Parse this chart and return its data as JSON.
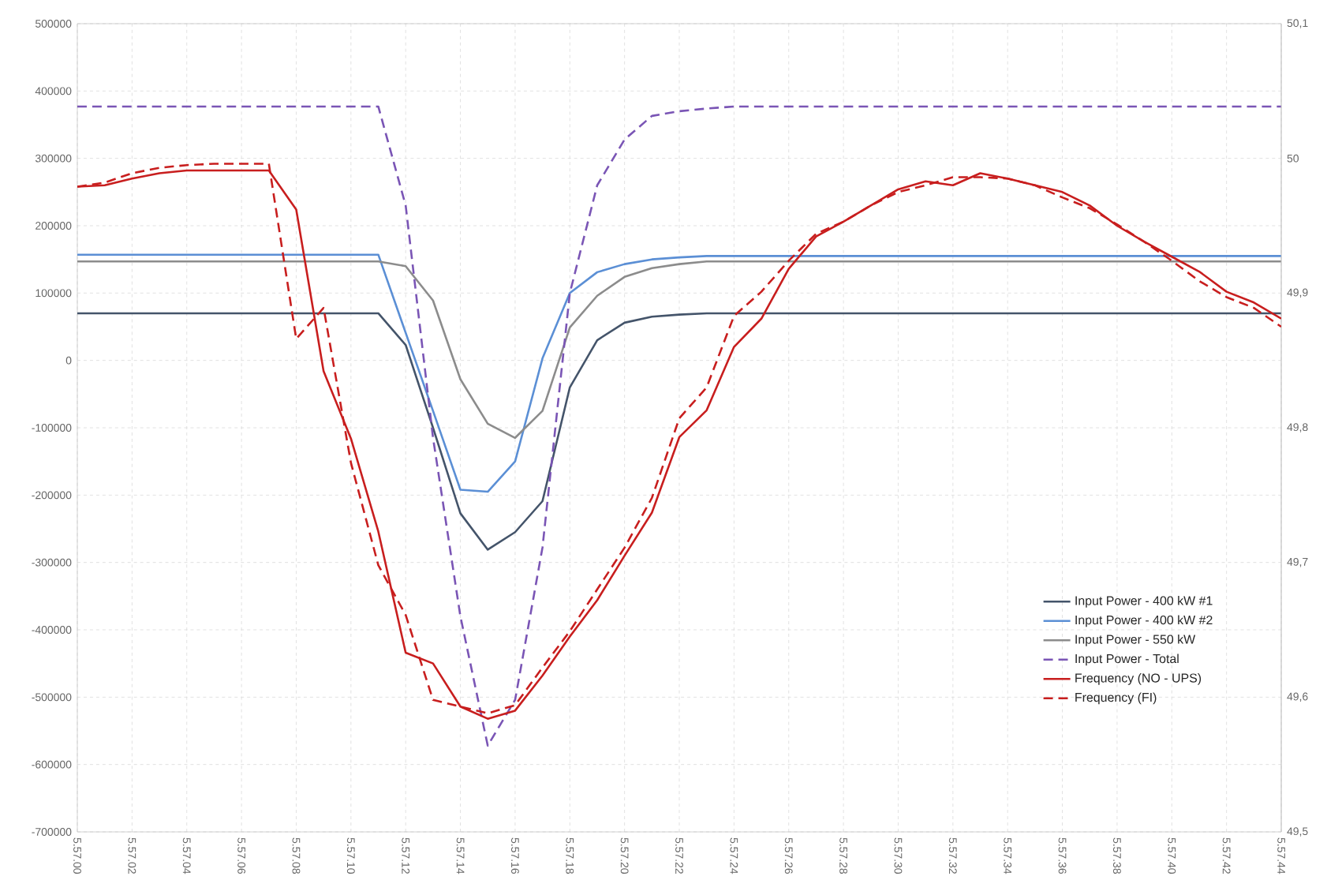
{
  "chart_data": {
    "type": "line",
    "categories": [
      "5.57.00",
      null,
      "5.57.02",
      null,
      "5.57.04",
      null,
      "5.57.06",
      null,
      "5.57.08",
      null,
      "5.57.10",
      null,
      "5.57.12",
      null,
      "5.57.14",
      null,
      "5.57.16",
      null,
      "5.57.18",
      null,
      "5.57.20",
      null,
      "5.57.22",
      null,
      "5.57.24",
      null,
      "5.57.26",
      null,
      "5.57.28",
      null,
      "5.57.30",
      null,
      "5.57.32",
      null,
      "5.57.34",
      null,
      "5.57.36",
      null,
      "5.57.38",
      null,
      "5.57.40",
      null,
      "5.57.42",
      null,
      "5.57.44"
    ],
    "series": [
      {
        "name": "Input Power - 400 kW #1",
        "color": "#44546a",
        "line_style": "solid",
        "values": [
          70000,
          70000,
          70000,
          70000,
          70000,
          70000,
          70000,
          70000,
          70000,
          70000,
          70000,
          70000,
          23000,
          -100000,
          -227000,
          -281000,
          -255000,
          -209000,
          -40000,
          30000,
          56000,
          65000,
          68000,
          70000,
          70000,
          70000,
          70000,
          70000,
          70000,
          70000,
          70000,
          70000,
          70000,
          70000,
          70000,
          70000,
          70000,
          70000,
          70000,
          70000,
          70000,
          70000,
          70000,
          70000,
          70000
        ]
      },
      {
        "name": "Input Power - 400 kW #2",
        "color": "#5b8fd5",
        "line_style": "solid",
        "values": [
          157000,
          157000,
          157000,
          157000,
          157000,
          157000,
          157000,
          157000,
          157000,
          157000,
          157000,
          157000,
          41000,
          -75000,
          -192000,
          -195000,
          -150000,
          3000,
          100000,
          131000,
          143000,
          150000,
          153000,
          155000,
          155000,
          155000,
          155000,
          155000,
          155000,
          155000,
          155000,
          155000,
          155000,
          155000,
          155000,
          155000,
          155000,
          155000,
          155000,
          155000,
          155000,
          155000,
          155000,
          155000,
          155000
        ]
      },
      {
        "name": "Input Power - 550 kW",
        "color": "#8c8c8c",
        "line_style": "solid",
        "values": [
          147000,
          147000,
          147000,
          147000,
          147000,
          147000,
          147000,
          147000,
          147000,
          147000,
          147000,
          147000,
          140000,
          89000,
          -28000,
          -94000,
          -115000,
          -75000,
          49000,
          96000,
          124000,
          137000,
          143000,
          147000,
          147000,
          147000,
          147000,
          147000,
          147000,
          147000,
          147000,
          147000,
          147000,
          147000,
          147000,
          147000,
          147000,
          147000,
          147000,
          147000,
          147000,
          147000,
          147000,
          147000,
          147000
        ]
      },
      {
        "name": "Input Power - Total",
        "color": "#7a55b5",
        "line_style": "dashed",
        "values": [
          377000,
          377000,
          377000,
          377000,
          377000,
          377000,
          377000,
          377000,
          377000,
          377000,
          377000,
          377000,
          230000,
          -115000,
          -380000,
          -572000,
          -504000,
          -278000,
          100000,
          260000,
          328000,
          363000,
          370000,
          374000,
          377000,
          377000,
          377000,
          377000,
          377000,
          377000,
          377000,
          377000,
          377000,
          377000,
          377000,
          377000,
          377000,
          377000,
          377000,
          377000,
          377000,
          377000,
          377000,
          377000,
          377000
        ]
      },
      {
        "name": "Frequency (NO - UPS)",
        "color": "#c81e1e",
        "line_style": "solid",
        "axis": "y2",
        "values": [
          49.979,
          49.98,
          49.985,
          49.989,
          49.991,
          49.991,
          49.991,
          49.991,
          49.962,
          49.842,
          49.792,
          49.723,
          49.633,
          49.625,
          49.593,
          49.584,
          49.59,
          49.616,
          49.645,
          49.672,
          49.705,
          49.737,
          49.793,
          49.813,
          49.86,
          49.881,
          49.918,
          49.942,
          49.953,
          49.965,
          49.977,
          49.983,
          49.98,
          49.989,
          49.985,
          49.98,
          49.975,
          49.965,
          49.95,
          49.938,
          49.927,
          49.916,
          49.901,
          49.893,
          49.881
        ]
      },
      {
        "name": "Frequency (FI)",
        "color": "#c81e1e",
        "line_style": "dashed",
        "axis": "y2",
        "values": [
          49.979,
          49.982,
          49.989,
          49.993,
          49.995,
          49.996,
          49.996,
          49.996,
          49.866,
          49.889,
          49.774,
          49.698,
          49.661,
          49.598,
          49.593,
          49.588,
          49.594,
          49.622,
          49.649,
          49.68,
          49.711,
          49.748,
          49.807,
          49.83,
          49.883,
          49.901,
          49.924,
          49.944,
          49.953,
          49.965,
          49.975,
          49.98,
          49.986,
          49.986,
          49.985,
          49.98,
          49.971,
          49.963,
          49.951,
          49.938,
          49.924,
          49.909,
          49.897,
          49.889,
          49.875
        ]
      }
    ],
    "ylim": [
      -700000,
      500000
    ],
    "yticks": [
      -700000,
      -600000,
      -500000,
      -400000,
      -300000,
      -200000,
      -100000,
      0,
      100000,
      200000,
      300000,
      400000,
      500000
    ],
    "y2lim": [
      49.5,
      50.1
    ],
    "y2ticks": [
      {
        "value": 49.5,
        "label": "49,5"
      },
      {
        "value": 49.6,
        "label": "49,6"
      },
      {
        "value": 49.7,
        "label": "49,7"
      },
      {
        "value": 49.8,
        "label": "49,8"
      },
      {
        "value": 49.9,
        "label": "49,9"
      },
      50,
      {
        "value": 50.1,
        "label": "50,1"
      }
    ],
    "grid": true,
    "legend": "bottom right",
    "marker": "none"
  }
}
